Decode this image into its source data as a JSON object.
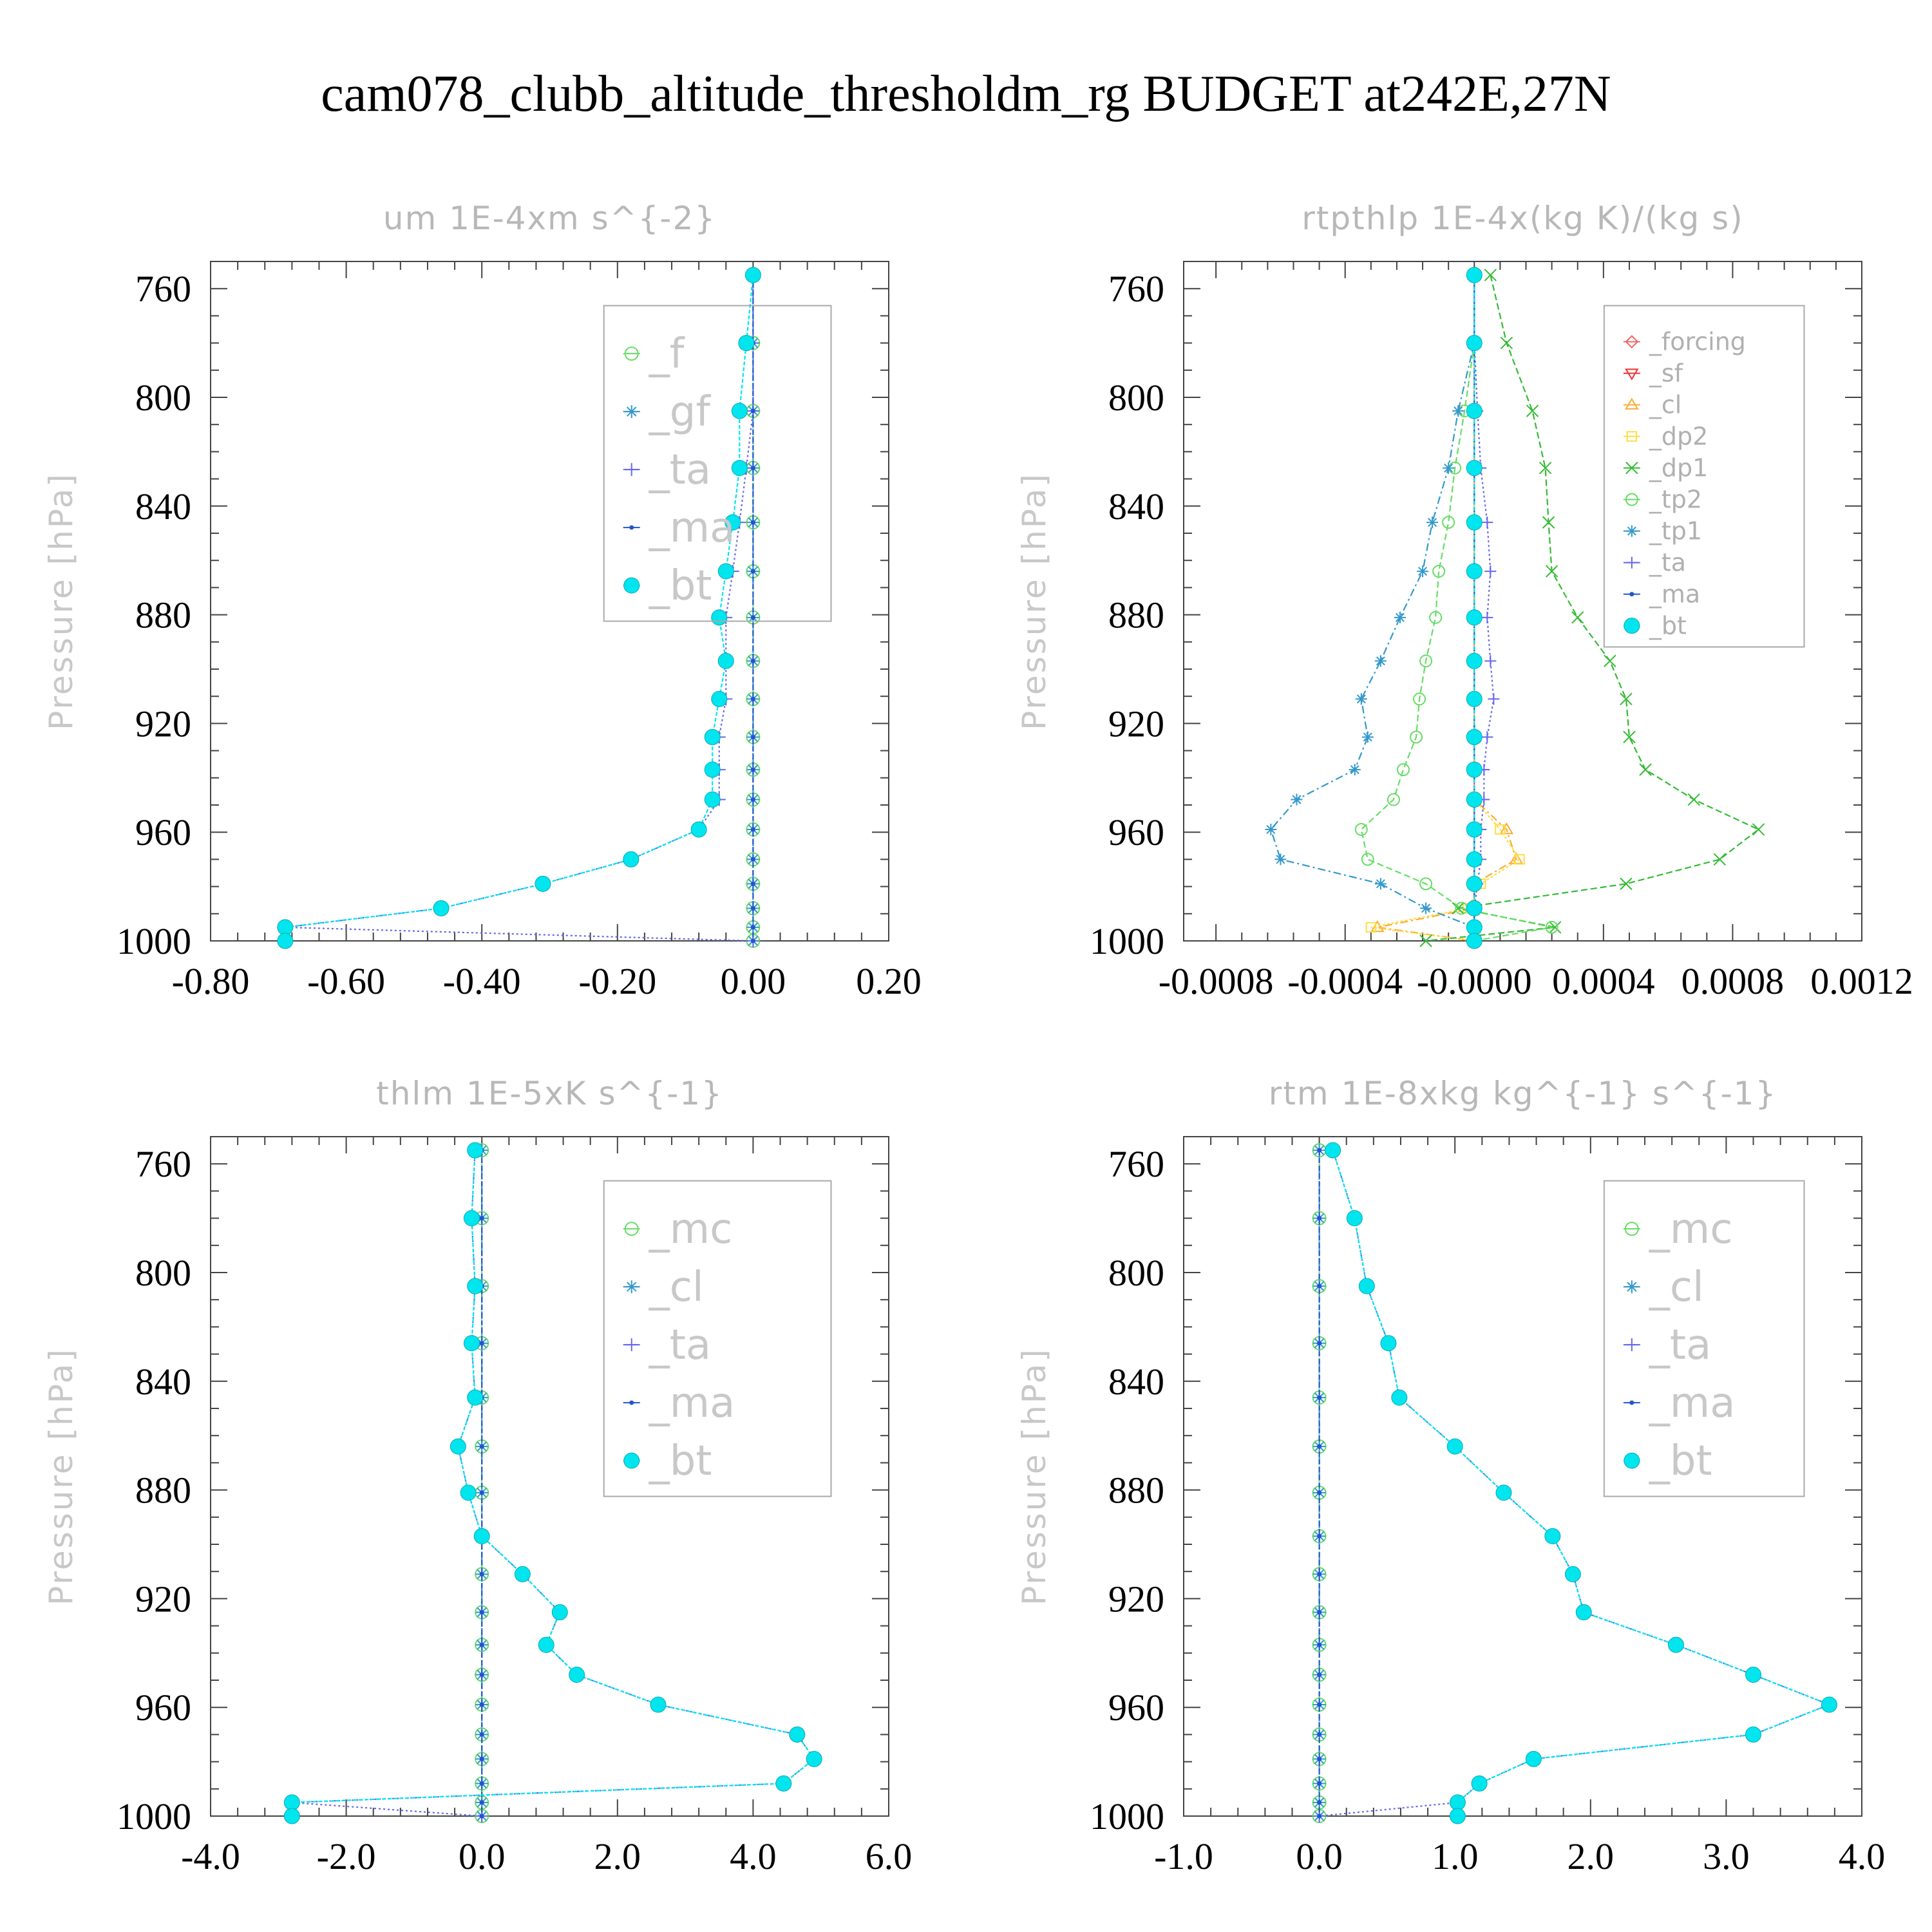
{
  "figure_title": "cam078_clubb_altitude_thresholdm_rg  BUDGET at242E,27N",
  "chart_data": [
    {
      "type": "line",
      "title": "um   1E-4xm s^{-2}",
      "ylabel": "Pressure [hPa]",
      "xlim": [
        -0.8,
        0.2
      ],
      "ylim": [
        1000,
        750
      ],
      "xticks": [
        "-0.80",
        "-0.60",
        "-0.40",
        "-0.20",
        "0.00",
        "0.20"
      ],
      "xtick_values": [
        -0.8,
        -0.6,
        -0.4,
        -0.2,
        0.0,
        0.2
      ],
      "yticks": [
        "760",
        "800",
        "840",
        "880",
        "920",
        "960",
        "1000"
      ],
      "ytick_values": [
        760,
        800,
        840,
        "880",
        920,
        960,
        1000
      ],
      "legend_size": "large",
      "legend_box": [
        0.58,
        0.65
      ],
      "pressure": [
        755,
        780,
        805,
        826,
        846,
        864,
        881,
        897,
        911,
        925,
        937,
        948,
        959,
        970,
        979,
        988,
        995,
        1000
      ],
      "series": [
        {
          "name": "_f",
          "color": "#66dd66",
          "marker": "circle-open",
          "dash": "4,3",
          "values": [
            0.0,
            0.0,
            0.0,
            0.0,
            0.0,
            0.0,
            0.0,
            0.0,
            0.0,
            0.0,
            0.0,
            0.0,
            0.0,
            0.0,
            0.0,
            0.0,
            0.0,
            0.0
          ]
        },
        {
          "name": "_gf",
          "color": "#3399cc",
          "marker": "asterisk",
          "dash": "12,5,3,5",
          "values": [
            0.0,
            0.0,
            0.0,
            0.0,
            0.0,
            0.0,
            0.0,
            0.0,
            0.0,
            0.0,
            0.0,
            0.0,
            0.0,
            0.0,
            0.0,
            0.0,
            0.0,
            0.0
          ]
        },
        {
          "name": "_ta",
          "color": "#6666ee",
          "marker": "plus",
          "dash": "3,4",
          "values": [
            0.0,
            0.0,
            0.0,
            -0.01,
            -0.02,
            -0.03,
            -0.04,
            -0.04,
            -0.04,
            -0.05,
            -0.05,
            -0.05,
            -0.08,
            -0.18,
            -0.31,
            -0.46,
            -0.69,
            0.0
          ]
        },
        {
          "name": "_ma",
          "color": "#2255cc",
          "marker": "dot",
          "dash": "8,4",
          "values": [
            0.0,
            0.0,
            0.0,
            0.0,
            0.0,
            0.0,
            0.0,
            0.0,
            0.0,
            0.0,
            0.0,
            0.0,
            0.0,
            0.0,
            0.0,
            0.0,
            0.0,
            0.0
          ]
        },
        {
          "name": "_bt",
          "color": "#00e5ee",
          "marker": "filled",
          "dash": "6,3",
          "values": [
            0.0,
            -0.01,
            -0.02,
            -0.02,
            -0.03,
            -0.04,
            -0.05,
            -0.04,
            -0.05,
            -0.06,
            -0.06,
            -0.06,
            -0.08,
            -0.18,
            -0.31,
            -0.46,
            -0.69,
            -0.69
          ]
        }
      ]
    },
    {
      "type": "line",
      "title": "rtpthlp   1E-4x(kg K)/(kg s)",
      "ylabel": "Pressure [hPa]",
      "xlim": [
        -0.0009,
        0.0012
      ],
      "ylim": [
        1000,
        750
      ],
      "xticks": [
        "-0.0008",
        "-0.0004",
        "-0.0000",
        "0.0004",
        "0.0008",
        "0.0012"
      ],
      "xtick_values": [
        -0.0008,
        -0.0004,
        0.0,
        0.0004,
        0.0008,
        0.0012
      ],
      "yticks": [
        "760",
        "800",
        "840",
        "880",
        "920",
        "960",
        "1000"
      ],
      "ytick_values": [
        760,
        800,
        840,
        880,
        920,
        960,
        1000
      ],
      "legend_size": "small",
      "legend_box": [
        0.62,
        0.56
      ],
      "pressure": [
        755,
        780,
        805,
        826,
        846,
        864,
        881,
        897,
        911,
        925,
        937,
        948,
        959,
        970,
        979,
        988,
        995,
        1000
      ],
      "series": [
        {
          "name": "_forcing",
          "color": "#ee6666",
          "marker": "diamond",
          "dash": "4,3",
          "values": [
            0,
            0,
            0,
            0,
            0,
            0,
            0,
            0,
            0,
            0,
            0,
            0,
            0,
            0,
            0,
            0,
            0,
            0
          ]
        },
        {
          "name": "_sf",
          "color": "#ee3333",
          "marker": "triangle-down",
          "dash": "none",
          "values": [
            0,
            0,
            0,
            0,
            0,
            0,
            0,
            0,
            0,
            0,
            0,
            0,
            0,
            0,
            0,
            0,
            0,
            0
          ]
        },
        {
          "name": "_cl",
          "color": "#ffaa33",
          "marker": "triangle-up",
          "dash": "12,5,3,5",
          "values": [
            0,
            0,
            0,
            0,
            0,
            0,
            0,
            0,
            0,
            0,
            0,
            0,
            0.0001,
            0.00013,
            0.0,
            0.0,
            -0.0003,
            0.0
          ]
        },
        {
          "name": "_dp2",
          "color": "#ffdd44",
          "marker": "square-open",
          "dash": "4,3",
          "values": [
            0,
            0,
            0,
            0,
            0,
            0,
            0,
            0,
            0,
            0,
            0,
            0,
            8e-05,
            0.00014,
            2e-05,
            -2e-05,
            -0.00032,
            0.0
          ]
        },
        {
          "name": "_dp1",
          "color": "#33bb33",
          "marker": "x",
          "dash": "10,5",
          "values": [
            5e-05,
            0.0001,
            0.00018,
            0.00022,
            0.00023,
            0.00024,
            0.00032,
            0.00042,
            0.00047,
            0.00048,
            0.00053,
            0.00068,
            0.00088,
            0.00076,
            0.00047,
            -5e-05,
            0.00025,
            -0.00015
          ]
        },
        {
          "name": "_tp2",
          "color": "#66dd66",
          "marker": "circle-open",
          "dash": "10,5",
          "values": [
            0,
            0,
            -3e-05,
            -6e-05,
            -8e-05,
            -0.00011,
            -0.00012,
            -0.00015,
            -0.00017,
            -0.00018,
            -0.00022,
            -0.00025,
            -0.00035,
            -0.00033,
            -0.00015,
            -4e-05,
            0.00024,
            0.0
          ]
        },
        {
          "name": "_tp1",
          "color": "#3399cc",
          "marker": "asterisk",
          "dash": "12,5,3,5",
          "values": [
            0,
            0,
            -5e-05,
            -8e-05,
            -0.00013,
            -0.00016,
            -0.00023,
            -0.00029,
            -0.00035,
            -0.00033,
            -0.00037,
            -0.00055,
            -0.00063,
            -0.0006,
            -0.00029,
            -0.00015,
            0.0,
            0.0
          ]
        },
        {
          "name": "_ta",
          "color": "#6666ee",
          "marker": "plus",
          "dash": "3,4",
          "values": [
            0,
            0,
            1e-05,
            2e-05,
            4e-05,
            5e-05,
            4e-05,
            5e-05,
            6e-05,
            4e-05,
            3e-05,
            3e-05,
            2e-05,
            2e-05,
            1e-05,
            0.0,
            0.0,
            0.0
          ]
        },
        {
          "name": "_ma",
          "color": "#2255cc",
          "marker": "dot",
          "dash": "8,4",
          "values": [
            0,
            0,
            0,
            0,
            0,
            0,
            0,
            0,
            0,
            0,
            0,
            0,
            0,
            0,
            0,
            0,
            0,
            0
          ]
        },
        {
          "name": "_bt",
          "color": "#00e5ee",
          "marker": "filled",
          "dash": "6,3",
          "values": [
            0,
            0,
            0,
            0,
            0,
            0,
            0,
            0,
            0,
            0,
            0,
            0,
            0,
            0,
            0,
            0,
            0,
            0
          ]
        }
      ]
    },
    {
      "type": "line",
      "title": "thlm   1E-5xK s^{-1}",
      "ylabel": "Pressure [hPa]",
      "xlim": [
        -4.0,
        6.0
      ],
      "ylim": [
        1000,
        750
      ],
      "xticks": [
        "-4.0",
        "-2.0",
        "0.0",
        "2.0",
        "4.0",
        "6.0"
      ],
      "xtick_values": [
        -4.0,
        -2.0,
        0.0,
        2.0,
        4.0,
        6.0
      ],
      "yticks": [
        "760",
        "800",
        "840",
        "880",
        "920",
        "960",
        "1000"
      ],
      "ytick_values": [
        760,
        800,
        840,
        880,
        920,
        960,
        1000
      ],
      "legend_size": "large",
      "legend_box": [
        0.58,
        0.65
      ],
      "pressure": [
        755,
        780,
        805,
        826,
        846,
        864,
        881,
        897,
        911,
        925,
        937,
        948,
        959,
        970,
        979,
        988,
        995,
        1000
      ],
      "series": [
        {
          "name": "_mc",
          "color": "#66dd66",
          "marker": "circle-open",
          "dash": "4,3",
          "values": [
            0.0,
            0.0,
            0.0,
            0.0,
            0.0,
            0.0,
            0.0,
            0.0,
            0.0,
            0.0,
            0.0,
            0.0,
            0.0,
            0.0,
            0.0,
            0.0,
            0.0,
            0.0
          ]
        },
        {
          "name": "_cl",
          "color": "#3399cc",
          "marker": "asterisk",
          "dash": "12,5,3,5",
          "values": [
            0.0,
            0.0,
            0.0,
            0.0,
            0.0,
            0.0,
            0.0,
            0.0,
            0.0,
            0.0,
            0.0,
            0.0,
            0.0,
            0.0,
            0.0,
            0.0,
            0.0,
            0.0
          ]
        },
        {
          "name": "_ta",
          "color": "#6666ee",
          "marker": "plus",
          "dash": "3,4",
          "values": [
            -0.1,
            -0.15,
            -0.1,
            -0.15,
            -0.1,
            -0.35,
            -0.2,
            0.0,
            0.6,
            1.15,
            0.95,
            1.4,
            2.6,
            4.65,
            4.9,
            4.45,
            -2.8,
            0.0
          ]
        },
        {
          "name": "_ma",
          "color": "#2255cc",
          "marker": "dot",
          "dash": "8,4",
          "values": [
            0.0,
            0.0,
            0.0,
            0.0,
            0.0,
            0.0,
            0.0,
            0.0,
            0.0,
            0.0,
            0.0,
            0.0,
            0.0,
            0.0,
            0.0,
            0.0,
            0.0,
            0.0
          ]
        },
        {
          "name": "_bt",
          "color": "#00e5ee",
          "marker": "filled",
          "dash": "6,3",
          "values": [
            -0.1,
            -0.15,
            -0.1,
            -0.15,
            -0.1,
            -0.35,
            -0.2,
            0.0,
            0.6,
            1.15,
            0.95,
            1.4,
            2.6,
            4.65,
            4.9,
            4.45,
            -2.8,
            -2.8
          ]
        }
      ]
    },
    {
      "type": "line",
      "title": "rtm   1E-8xkg kg^{-1} s^{-1}",
      "ylabel": "Pressure [hPa]",
      "xlim": [
        -1.0,
        4.0
      ],
      "ylim": [
        1000,
        750
      ],
      "xticks": [
        "-1.0",
        "0.0",
        "1.0",
        "2.0",
        "3.0",
        "4.0"
      ],
      "xtick_values": [
        -1.0,
        0.0,
        1.0,
        2.0,
        3.0,
        4.0
      ],
      "yticks": [
        "760",
        "800",
        "840",
        "880",
        "920",
        "960",
        "1000"
      ],
      "ytick_values": [
        760,
        800,
        840,
        880,
        920,
        960,
        1000
      ],
      "legend_size": "large",
      "legend_box": [
        0.62,
        0.65
      ],
      "pressure": [
        755,
        780,
        805,
        826,
        846,
        864,
        881,
        897,
        911,
        925,
        937,
        948,
        959,
        970,
        979,
        988,
        995,
        1000
      ],
      "series": [
        {
          "name": "_mc",
          "color": "#66dd66",
          "marker": "circle-open",
          "dash": "4,3",
          "values": [
            0.0,
            0.0,
            0.0,
            0.0,
            0.0,
            0.0,
            0.0,
            0.0,
            0.0,
            0.0,
            0.0,
            0.0,
            0.0,
            0.0,
            0.0,
            0.0,
            0.0,
            0.0
          ]
        },
        {
          "name": "_cl",
          "color": "#3399cc",
          "marker": "asterisk",
          "dash": "12,5,3,5",
          "values": [
            0.0,
            0.0,
            0.0,
            0.0,
            0.0,
            0.0,
            0.0,
            0.0,
            0.0,
            0.0,
            0.0,
            0.0,
            0.0,
            0.0,
            0.0,
            0.0,
            0.0,
            0.0
          ]
        },
        {
          "name": "_ta",
          "color": "#6666ee",
          "marker": "plus",
          "dash": "3,4",
          "values": [
            0.1,
            0.26,
            0.35,
            0.51,
            0.59,
            1.0,
            1.36,
            1.72,
            1.87,
            1.95,
            2.63,
            3.2,
            3.76,
            3.2,
            1.58,
            1.18,
            1.02,
            0.0
          ]
        },
        {
          "name": "_ma",
          "color": "#2255cc",
          "marker": "dot",
          "dash": "8,4",
          "values": [
            0.0,
            0.0,
            0.0,
            0.0,
            0.0,
            0.0,
            0.0,
            0.0,
            0.0,
            0.0,
            0.0,
            0.0,
            0.0,
            0.0,
            0.0,
            0.0,
            0.0,
            0.0
          ]
        },
        {
          "name": "_bt",
          "color": "#00e5ee",
          "marker": "filled",
          "dash": "6,3",
          "values": [
            0.1,
            0.26,
            0.35,
            0.51,
            0.59,
            1.0,
            1.36,
            1.72,
            1.87,
            1.95,
            2.63,
            3.2,
            3.76,
            3.2,
            1.58,
            1.18,
            1.02,
            1.02
          ]
        }
      ]
    }
  ]
}
